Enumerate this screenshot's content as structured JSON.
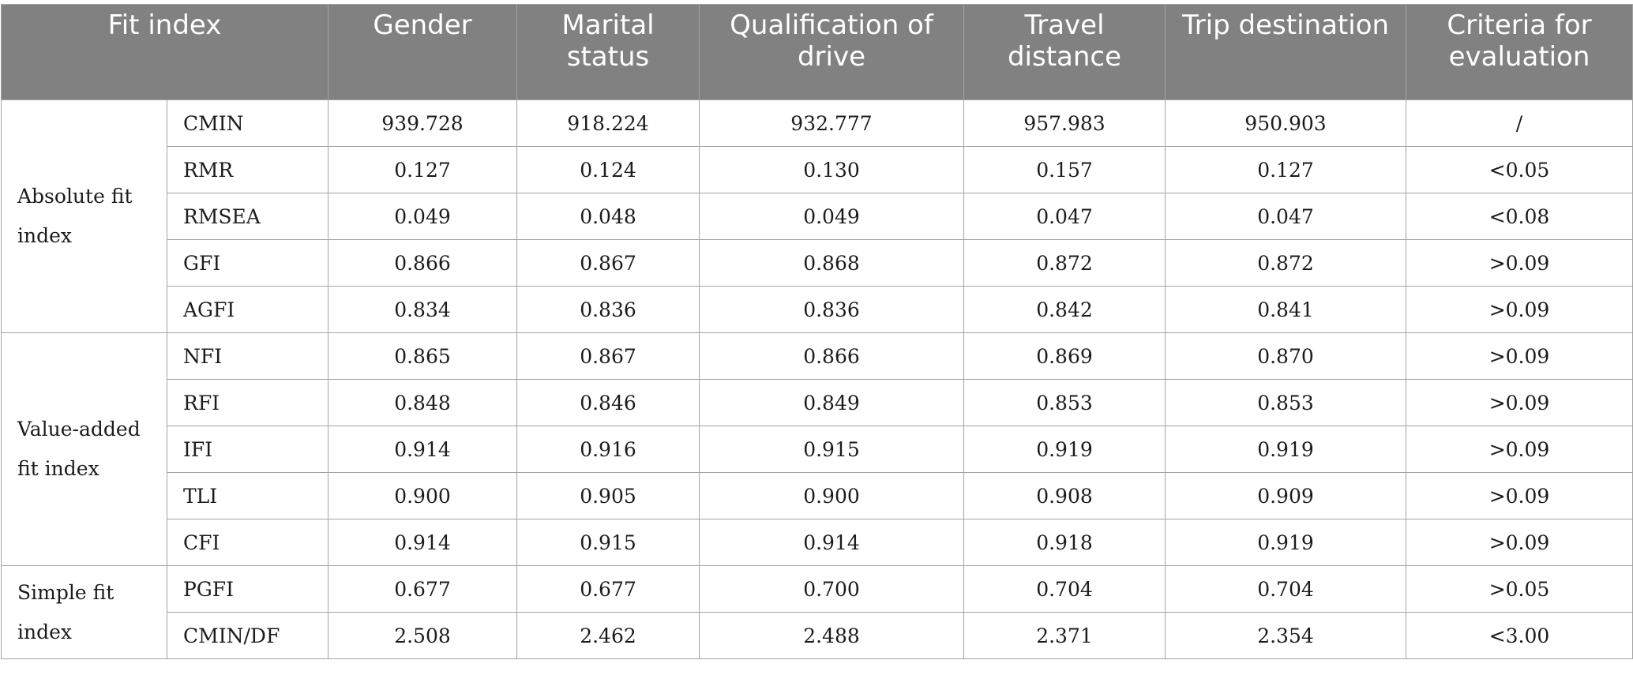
{
  "headers": [
    "Fit index",
    "Gender",
    "Marital status",
    "Qualification of drive",
    "Travel distance",
    "Trip destination",
    "Criteria for evaluation"
  ],
  "groups": [
    {
      "label": "Absolute fit index",
      "rows": [
        {
          "index": "CMIN",
          "values": [
            "939.728",
            "918.224",
            "932.777",
            "957.983",
            "950.903"
          ],
          "criteria": "/"
        },
        {
          "index": "RMR",
          "values": [
            "0.127",
            "0.124",
            "0.130",
            "0.157",
            "0.127"
          ],
          "criteria": "<0.05"
        },
        {
          "index": "RMSEA",
          "values": [
            "0.049",
            "0.048",
            "0.049",
            "0.047",
            "0.047"
          ],
          "criteria": "<0.08"
        },
        {
          "index": "GFI",
          "values": [
            "0.866",
            "0.867",
            "0.868",
            "0.872",
            "0.872"
          ],
          "criteria": ">0.09"
        },
        {
          "index": "AGFI",
          "values": [
            "0.834",
            "0.836",
            "0.836",
            "0.842",
            "0.841"
          ],
          "criteria": ">0.09"
        }
      ]
    },
    {
      "label": "Value-added fit index",
      "rows": [
        {
          "index": "NFI",
          "values": [
            "0.865",
            "0.867",
            "0.866",
            "0.869",
            "0.870"
          ],
          "criteria": ">0.09"
        },
        {
          "index": "RFI",
          "values": [
            "0.848",
            "0.846",
            "0.849",
            "0.853",
            "0.853"
          ],
          "criteria": ">0.09"
        },
        {
          "index": "IFI",
          "values": [
            "0.914",
            "0.916",
            "0.915",
            "0.919",
            "0.919"
          ],
          "criteria": ">0.09"
        },
        {
          "index": "TLI",
          "values": [
            "0.900",
            "0.905",
            "0.900",
            "0.908",
            "0.909"
          ],
          "criteria": ">0.09"
        },
        {
          "index": "CFI",
          "values": [
            "0.914",
            "0.915",
            "0.914",
            "0.918",
            "0.919"
          ],
          "criteria": ">0.09"
        }
      ]
    },
    {
      "label": "Simple fit index",
      "rows": [
        {
          "index": "PGFI",
          "values": [
            "0.677",
            "0.677",
            "0.700",
            "0.704",
            "0.704"
          ],
          "criteria": ">0.05"
        },
        {
          "index": "CMIN/DF",
          "values": [
            "2.508",
            "2.462",
            "2.488",
            "2.371",
            "2.354"
          ],
          "criteria": "<3.00"
        }
      ]
    }
  ]
}
